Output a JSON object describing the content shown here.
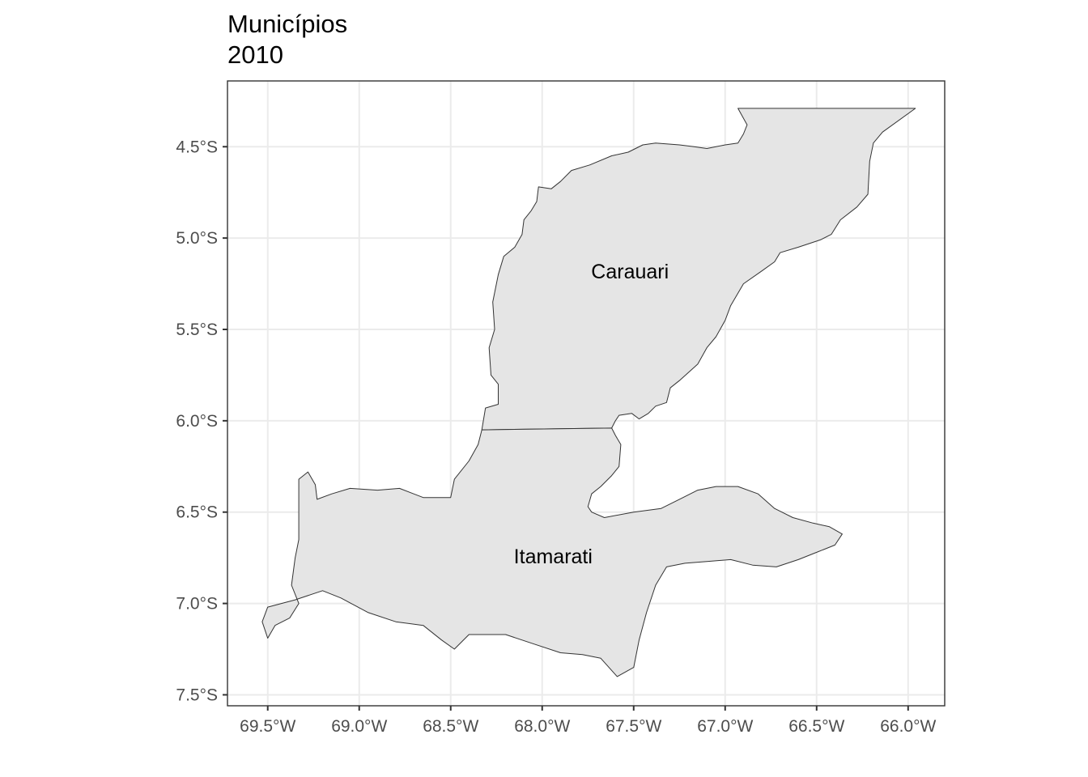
{
  "title": "Municípios",
  "subtitle": "2010",
  "fill_color": "#e5e5e5",
  "border_color": "#333333",
  "chart_data": {
    "type": "map",
    "projection": "lon-lat",
    "xlim": [
      -69.72,
      -65.8
    ],
    "ylim": [
      -7.56,
      -4.14
    ],
    "x_ticks": [
      {
        "value": -69.5,
        "label": "69.5°W"
      },
      {
        "value": -69.0,
        "label": "69.0°W"
      },
      {
        "value": -68.5,
        "label": "68.5°W"
      },
      {
        "value": -68.0,
        "label": "68.0°W"
      },
      {
        "value": -67.5,
        "label": "67.5°W"
      },
      {
        "value": -67.0,
        "label": "67.0°W"
      },
      {
        "value": -66.5,
        "label": "66.5°W"
      },
      {
        "value": -66.0,
        "label": "66.0°W"
      }
    ],
    "y_ticks": [
      {
        "value": -4.5,
        "label": "4.5°S"
      },
      {
        "value": -5.0,
        "label": "5.0°S"
      },
      {
        "value": -5.5,
        "label": "5.5°S"
      },
      {
        "value": -6.0,
        "label": "6.0°S"
      },
      {
        "value": -6.5,
        "label": "6.5°S"
      },
      {
        "value": -7.0,
        "label": "7.0°S"
      },
      {
        "value": -7.5,
        "label": "7.5°S"
      }
    ],
    "grid": true,
    "regions": [
      {
        "name": "Carauari",
        "label_at": [
          -67.52,
          -5.18
        ],
        "boundary": [
          [
            -66.93,
            -4.29
          ],
          [
            -65.96,
            -4.29
          ],
          [
            -66.14,
            -4.42
          ],
          [
            -66.19,
            -4.48
          ],
          [
            -66.21,
            -4.58
          ],
          [
            -66.22,
            -4.76
          ],
          [
            -66.28,
            -4.83
          ],
          [
            -66.37,
            -4.9
          ],
          [
            -66.42,
            -4.98
          ],
          [
            -66.48,
            -5.01
          ],
          [
            -66.6,
            -5.05
          ],
          [
            -66.7,
            -5.08
          ],
          [
            -66.73,
            -5.13
          ],
          [
            -66.8,
            -5.18
          ],
          [
            -66.9,
            -5.25
          ],
          [
            -66.97,
            -5.37
          ],
          [
            -67.0,
            -5.45
          ],
          [
            -67.05,
            -5.54
          ],
          [
            -67.1,
            -5.6
          ],
          [
            -67.15,
            -5.69
          ],
          [
            -67.25,
            -5.78
          ],
          [
            -67.3,
            -5.82
          ],
          [
            -67.32,
            -5.9
          ],
          [
            -67.38,
            -5.92
          ],
          [
            -67.42,
            -5.96
          ],
          [
            -67.47,
            -5.99
          ],
          [
            -67.51,
            -5.96
          ],
          [
            -67.58,
            -5.97
          ],
          [
            -67.6,
            -6.0
          ],
          [
            -67.62,
            -6.04
          ],
          [
            -68.33,
            -6.05
          ],
          [
            -68.31,
            -5.93
          ],
          [
            -68.24,
            -5.91
          ],
          [
            -68.24,
            -5.8
          ],
          [
            -68.28,
            -5.75
          ],
          [
            -68.29,
            -5.6
          ],
          [
            -68.26,
            -5.5
          ],
          [
            -68.27,
            -5.35
          ],
          [
            -68.24,
            -5.2
          ],
          [
            -68.21,
            -5.1
          ],
          [
            -68.15,
            -5.05
          ],
          [
            -68.11,
            -4.98
          ],
          [
            -68.1,
            -4.9
          ],
          [
            -68.06,
            -4.85
          ],
          [
            -68.03,
            -4.8
          ],
          [
            -68.02,
            -4.72
          ],
          [
            -67.95,
            -4.73
          ],
          [
            -67.9,
            -4.69
          ],
          [
            -67.84,
            -4.63
          ],
          [
            -67.74,
            -4.6
          ],
          [
            -67.62,
            -4.55
          ],
          [
            -67.53,
            -4.53
          ],
          [
            -67.45,
            -4.49
          ],
          [
            -67.38,
            -4.48
          ],
          [
            -67.25,
            -4.49
          ],
          [
            -67.17,
            -4.5
          ],
          [
            -67.1,
            -4.51
          ],
          [
            -67.0,
            -4.49
          ],
          [
            -66.93,
            -4.48
          ],
          [
            -66.9,
            -4.43
          ],
          [
            -66.88,
            -4.38
          ],
          [
            -66.93,
            -4.29
          ]
        ]
      },
      {
        "name": "Itamarati",
        "label_at": [
          -67.94,
          -6.74
        ],
        "boundary": [
          [
            -68.33,
            -6.05
          ],
          [
            -67.62,
            -6.04
          ],
          [
            -67.6,
            -6.08
          ],
          [
            -67.57,
            -6.13
          ],
          [
            -67.58,
            -6.25
          ],
          [
            -67.62,
            -6.3
          ],
          [
            -67.68,
            -6.36
          ],
          [
            -67.73,
            -6.4
          ],
          [
            -67.75,
            -6.47
          ],
          [
            -67.73,
            -6.5
          ],
          [
            -67.66,
            -6.53
          ],
          [
            -67.5,
            -6.5
          ],
          [
            -67.35,
            -6.48
          ],
          [
            -67.25,
            -6.43
          ],
          [
            -67.15,
            -6.38
          ],
          [
            -67.05,
            -6.36
          ],
          [
            -66.93,
            -6.36
          ],
          [
            -66.82,
            -6.4
          ],
          [
            -66.73,
            -6.48
          ],
          [
            -66.63,
            -6.53
          ],
          [
            -66.52,
            -6.56
          ],
          [
            -66.43,
            -6.58
          ],
          [
            -66.36,
            -6.62
          ],
          [
            -66.4,
            -6.68
          ],
          [
            -66.5,
            -6.72
          ],
          [
            -66.6,
            -6.76
          ],
          [
            -66.72,
            -6.8
          ],
          [
            -66.85,
            -6.79
          ],
          [
            -66.97,
            -6.76
          ],
          [
            -67.1,
            -6.77
          ],
          [
            -67.22,
            -6.78
          ],
          [
            -67.32,
            -6.8
          ],
          [
            -67.38,
            -6.9
          ],
          [
            -67.43,
            -7.05
          ],
          [
            -67.47,
            -7.2
          ],
          [
            -67.5,
            -7.35
          ],
          [
            -67.59,
            -7.4
          ],
          [
            -67.68,
            -7.3
          ],
          [
            -67.78,
            -7.28
          ],
          [
            -67.9,
            -7.27
          ],
          [
            -68.05,
            -7.22
          ],
          [
            -68.2,
            -7.17
          ],
          [
            -68.4,
            -7.17
          ],
          [
            -68.48,
            -7.25
          ],
          [
            -68.55,
            -7.2
          ],
          [
            -68.65,
            -7.12
          ],
          [
            -68.8,
            -7.1
          ],
          [
            -68.95,
            -7.05
          ],
          [
            -69.1,
            -6.97
          ],
          [
            -69.2,
            -6.93
          ],
          [
            -69.35,
            -6.98
          ],
          [
            -69.5,
            -7.02
          ],
          [
            -69.53,
            -7.1
          ],
          [
            -69.5,
            -7.19
          ],
          [
            -69.46,
            -7.12
          ],
          [
            -69.38,
            -7.08
          ],
          [
            -69.33,
            -7.0
          ],
          [
            -69.37,
            -6.9
          ],
          [
            -69.35,
            -6.75
          ],
          [
            -69.33,
            -6.65
          ],
          [
            -69.33,
            -6.45
          ],
          [
            -69.33,
            -6.32
          ],
          [
            -69.28,
            -6.28
          ],
          [
            -69.24,
            -6.35
          ],
          [
            -69.23,
            -6.43
          ],
          [
            -69.15,
            -6.4
          ],
          [
            -69.05,
            -6.37
          ],
          [
            -68.9,
            -6.38
          ],
          [
            -68.78,
            -6.37
          ],
          [
            -68.65,
            -6.42
          ],
          [
            -68.5,
            -6.42
          ],
          [
            -68.48,
            -6.32
          ],
          [
            -68.4,
            -6.22
          ],
          [
            -68.35,
            -6.13
          ],
          [
            -68.33,
            -6.05
          ]
        ]
      }
    ]
  }
}
